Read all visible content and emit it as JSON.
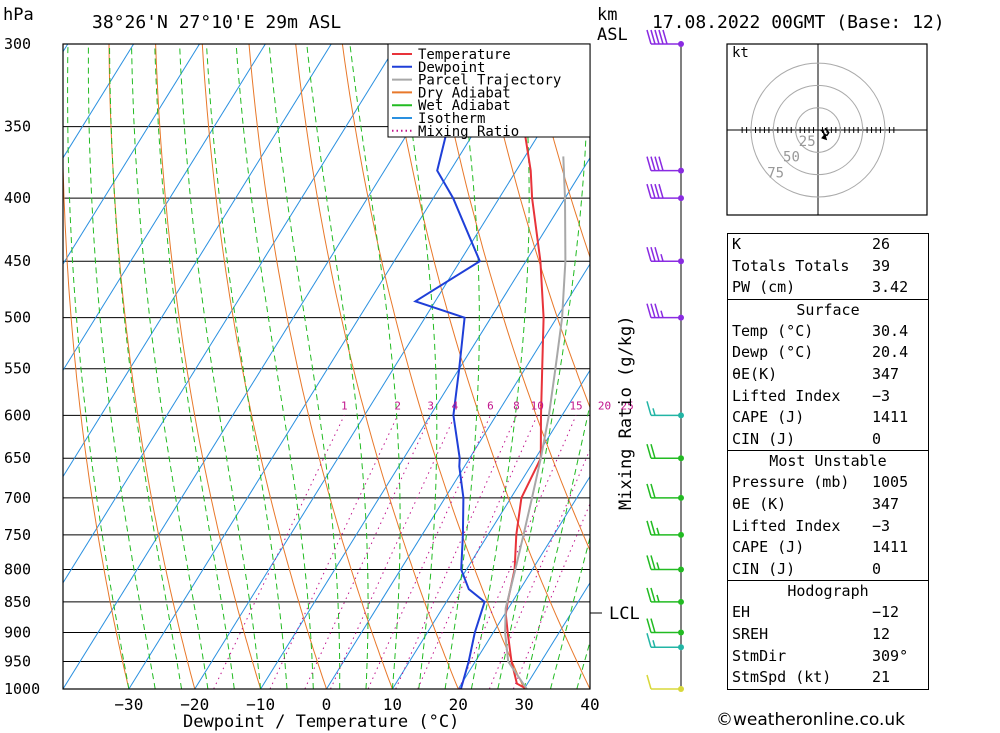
{
  "header": {
    "location": "38°26'N 27°10'E 29m ASL",
    "pressure_unit": "hPa",
    "height_unit_line1": "km",
    "height_unit_line2": "ASL",
    "date": "17.08.2022 00GMT (Base: 12)"
  },
  "credit": "©weatheronline.co.uk",
  "chart_data": {
    "type": "line",
    "subtype": "skew-T log-P diagram",
    "xlabel": "Dewpoint / Temperature (°C)",
    "ylabel": "hPa",
    "mixing_ratio_label": "Mixing Ratio (g/kg)",
    "lcl_label": "LCL",
    "lcl_pressure": 860,
    "xlim": [
      -40,
      40
    ],
    "ylim": [
      1000,
      300
    ],
    "pressure_ticks": [
      300,
      350,
      400,
      450,
      500,
      550,
      600,
      650,
      700,
      750,
      800,
      850,
      900,
      950,
      1000
    ],
    "temperature_ticks": [
      "-30",
      "-20",
      "-10",
      "0",
      "10",
      "20",
      "30",
      "40"
    ],
    "mixing_ratio_values": [
      1,
      2,
      3,
      4,
      6,
      8,
      10,
      15,
      20,
      25
    ],
    "mixing_ratio_labels": [
      "1",
      "2",
      "3",
      "4",
      "6",
      "8",
      "10",
      "15",
      "20",
      "25"
    ],
    "legend": [
      "Temperature",
      "Dewpoint",
      "Parcel Trajectory",
      "Dry Adiabat",
      "Wet Adiabat",
      "Isotherm",
      "Mixing Ratio"
    ],
    "colors": {
      "temperature": "#e8333a",
      "dewpoint": "#1f3fd8",
      "parcel": "#a8a8a8",
      "dry_adiabat": "#e8782a",
      "wet_adiabat": "#22bb22",
      "isotherm": "#2a90e0",
      "mixing_ratio": "#c0148c"
    },
    "series": [
      {
        "name": "Temperature",
        "points": [
          [
            1000,
            30.4
          ],
          [
            990,
            28.4
          ],
          [
            950,
            25.5
          ],
          [
            900,
            22.2
          ],
          [
            870,
            20.2
          ],
          [
            850,
            19.3
          ],
          [
            800,
            17.3
          ],
          [
            750,
            14.3
          ],
          [
            700,
            11.6
          ],
          [
            650,
            10.8
          ],
          [
            600,
            6.8
          ],
          [
            550,
            2.6
          ],
          [
            500,
            -2.0
          ],
          [
            450,
            -7.8
          ],
          [
            400,
            -15.0
          ],
          [
            380,
            -17.8
          ],
          [
            350,
            -23.0
          ],
          [
            300,
            -32.5
          ]
        ]
      },
      {
        "name": "Dewpoint",
        "points": [
          [
            1000,
            20.4
          ],
          [
            950,
            19.0
          ],
          [
            900,
            17.2
          ],
          [
            850,
            15.8
          ],
          [
            830,
            12.2
          ],
          [
            800,
            9.2
          ],
          [
            750,
            6.2
          ],
          [
            700,
            2.8
          ],
          [
            660,
            -0.8
          ],
          [
            650,
            -1.5
          ],
          [
            600,
            -6.5
          ],
          [
            550,
            -10.0
          ],
          [
            500,
            -14.0
          ],
          [
            485,
            -23.0
          ],
          [
            450,
            -17.0
          ],
          [
            400,
            -27.0
          ],
          [
            380,
            -32.0
          ],
          [
            350,
            -34.5
          ],
          [
            300,
            -38.5
          ]
        ]
      },
      {
        "name": "Parcel Trajectory",
        "points": [
          [
            1000,
            30.4
          ],
          [
            950,
            25.0
          ],
          [
            900,
            21.8
          ],
          [
            860,
            19.6
          ],
          [
            800,
            17.4
          ],
          [
            750,
            15.4
          ],
          [
            700,
            13.2
          ],
          [
            650,
            10.8
          ],
          [
            600,
            8.0
          ],
          [
            550,
            4.6
          ],
          [
            500,
            0.8
          ],
          [
            450,
            -4.0
          ],
          [
            400,
            -10.0
          ],
          [
            370,
            -14.2
          ]
        ]
      }
    ],
    "wind_barbs": [
      {
        "pressure": 1000,
        "dir_deg": 330,
        "speed_kt": 10
      },
      {
        "pressure": 925,
        "dir_deg": 300,
        "speed_kt": 15
      },
      {
        "pressure": 900,
        "dir_deg": 290,
        "speed_kt": 20
      },
      {
        "pressure": 850,
        "dir_deg": 280,
        "speed_kt": 25
      },
      {
        "pressure": 800,
        "dir_deg": 290,
        "speed_kt": 25
      },
      {
        "pressure": 750,
        "dir_deg": 300,
        "speed_kt": 25
      },
      {
        "pressure": 700,
        "dir_deg": 270,
        "speed_kt": 20
      },
      {
        "pressure": 650,
        "dir_deg": 270,
        "speed_kt": 20
      },
      {
        "pressure": 600,
        "dir_deg": 300,
        "speed_kt": 15
      },
      {
        "pressure": 500,
        "dir_deg": 280,
        "speed_kt": 35
      },
      {
        "pressure": 450,
        "dir_deg": 280,
        "speed_kt": 35
      },
      {
        "pressure": 400,
        "dir_deg": 280,
        "speed_kt": 40
      },
      {
        "pressure": 380,
        "dir_deg": 285,
        "speed_kt": 40
      },
      {
        "pressure": 300,
        "dir_deg": 280,
        "speed_kt": 50
      }
    ],
    "hodograph": {
      "unit_label": "kt",
      "ring_labels": [
        "25",
        "50",
        "75"
      ],
      "points_kt": [
        [
          3,
          -1
        ],
        [
          5,
          0
        ],
        [
          6,
          -2
        ],
        [
          7,
          -5
        ],
        [
          10,
          -6
        ],
        [
          12,
          -3
        ],
        [
          8,
          2
        ]
      ]
    }
  },
  "indices": {
    "general": [
      {
        "label": "K",
        "value": "26"
      },
      {
        "label": "Totals Totals",
        "value": "39"
      },
      {
        "label": "PW (cm)",
        "value": "3.42"
      }
    ],
    "surface": {
      "title": "Surface",
      "rows": [
        {
          "label": "Temp (°C)",
          "value": "30.4"
        },
        {
          "label": "Dewp (°C)",
          "value": "20.4"
        },
        {
          "label": "θE(K)",
          "value": "347"
        },
        {
          "label": "Lifted Index",
          "value": "-3"
        },
        {
          "label": "CAPE (J)",
          "value": "1411"
        },
        {
          "label": "CIN (J)",
          "value": "0"
        }
      ]
    },
    "most_unstable": {
      "title": "Most Unstable",
      "rows": [
        {
          "label": "Pressure (mb)",
          "value": "1005"
        },
        {
          "label": "θE (K)",
          "value": "347"
        },
        {
          "label": "Lifted Index",
          "value": "-3"
        },
        {
          "label": "CAPE (J)",
          "value": "1411"
        },
        {
          "label": "CIN (J)",
          "value": "0"
        }
      ]
    },
    "hodograph": {
      "title": "Hodograph",
      "rows": [
        {
          "label": "EH",
          "value": "-12"
        },
        {
          "label": "SREH",
          "value": "12"
        },
        {
          "label": "StmDir",
          "value": "309°"
        },
        {
          "label": "StmSpd (kt)",
          "value": "21"
        }
      ]
    }
  }
}
